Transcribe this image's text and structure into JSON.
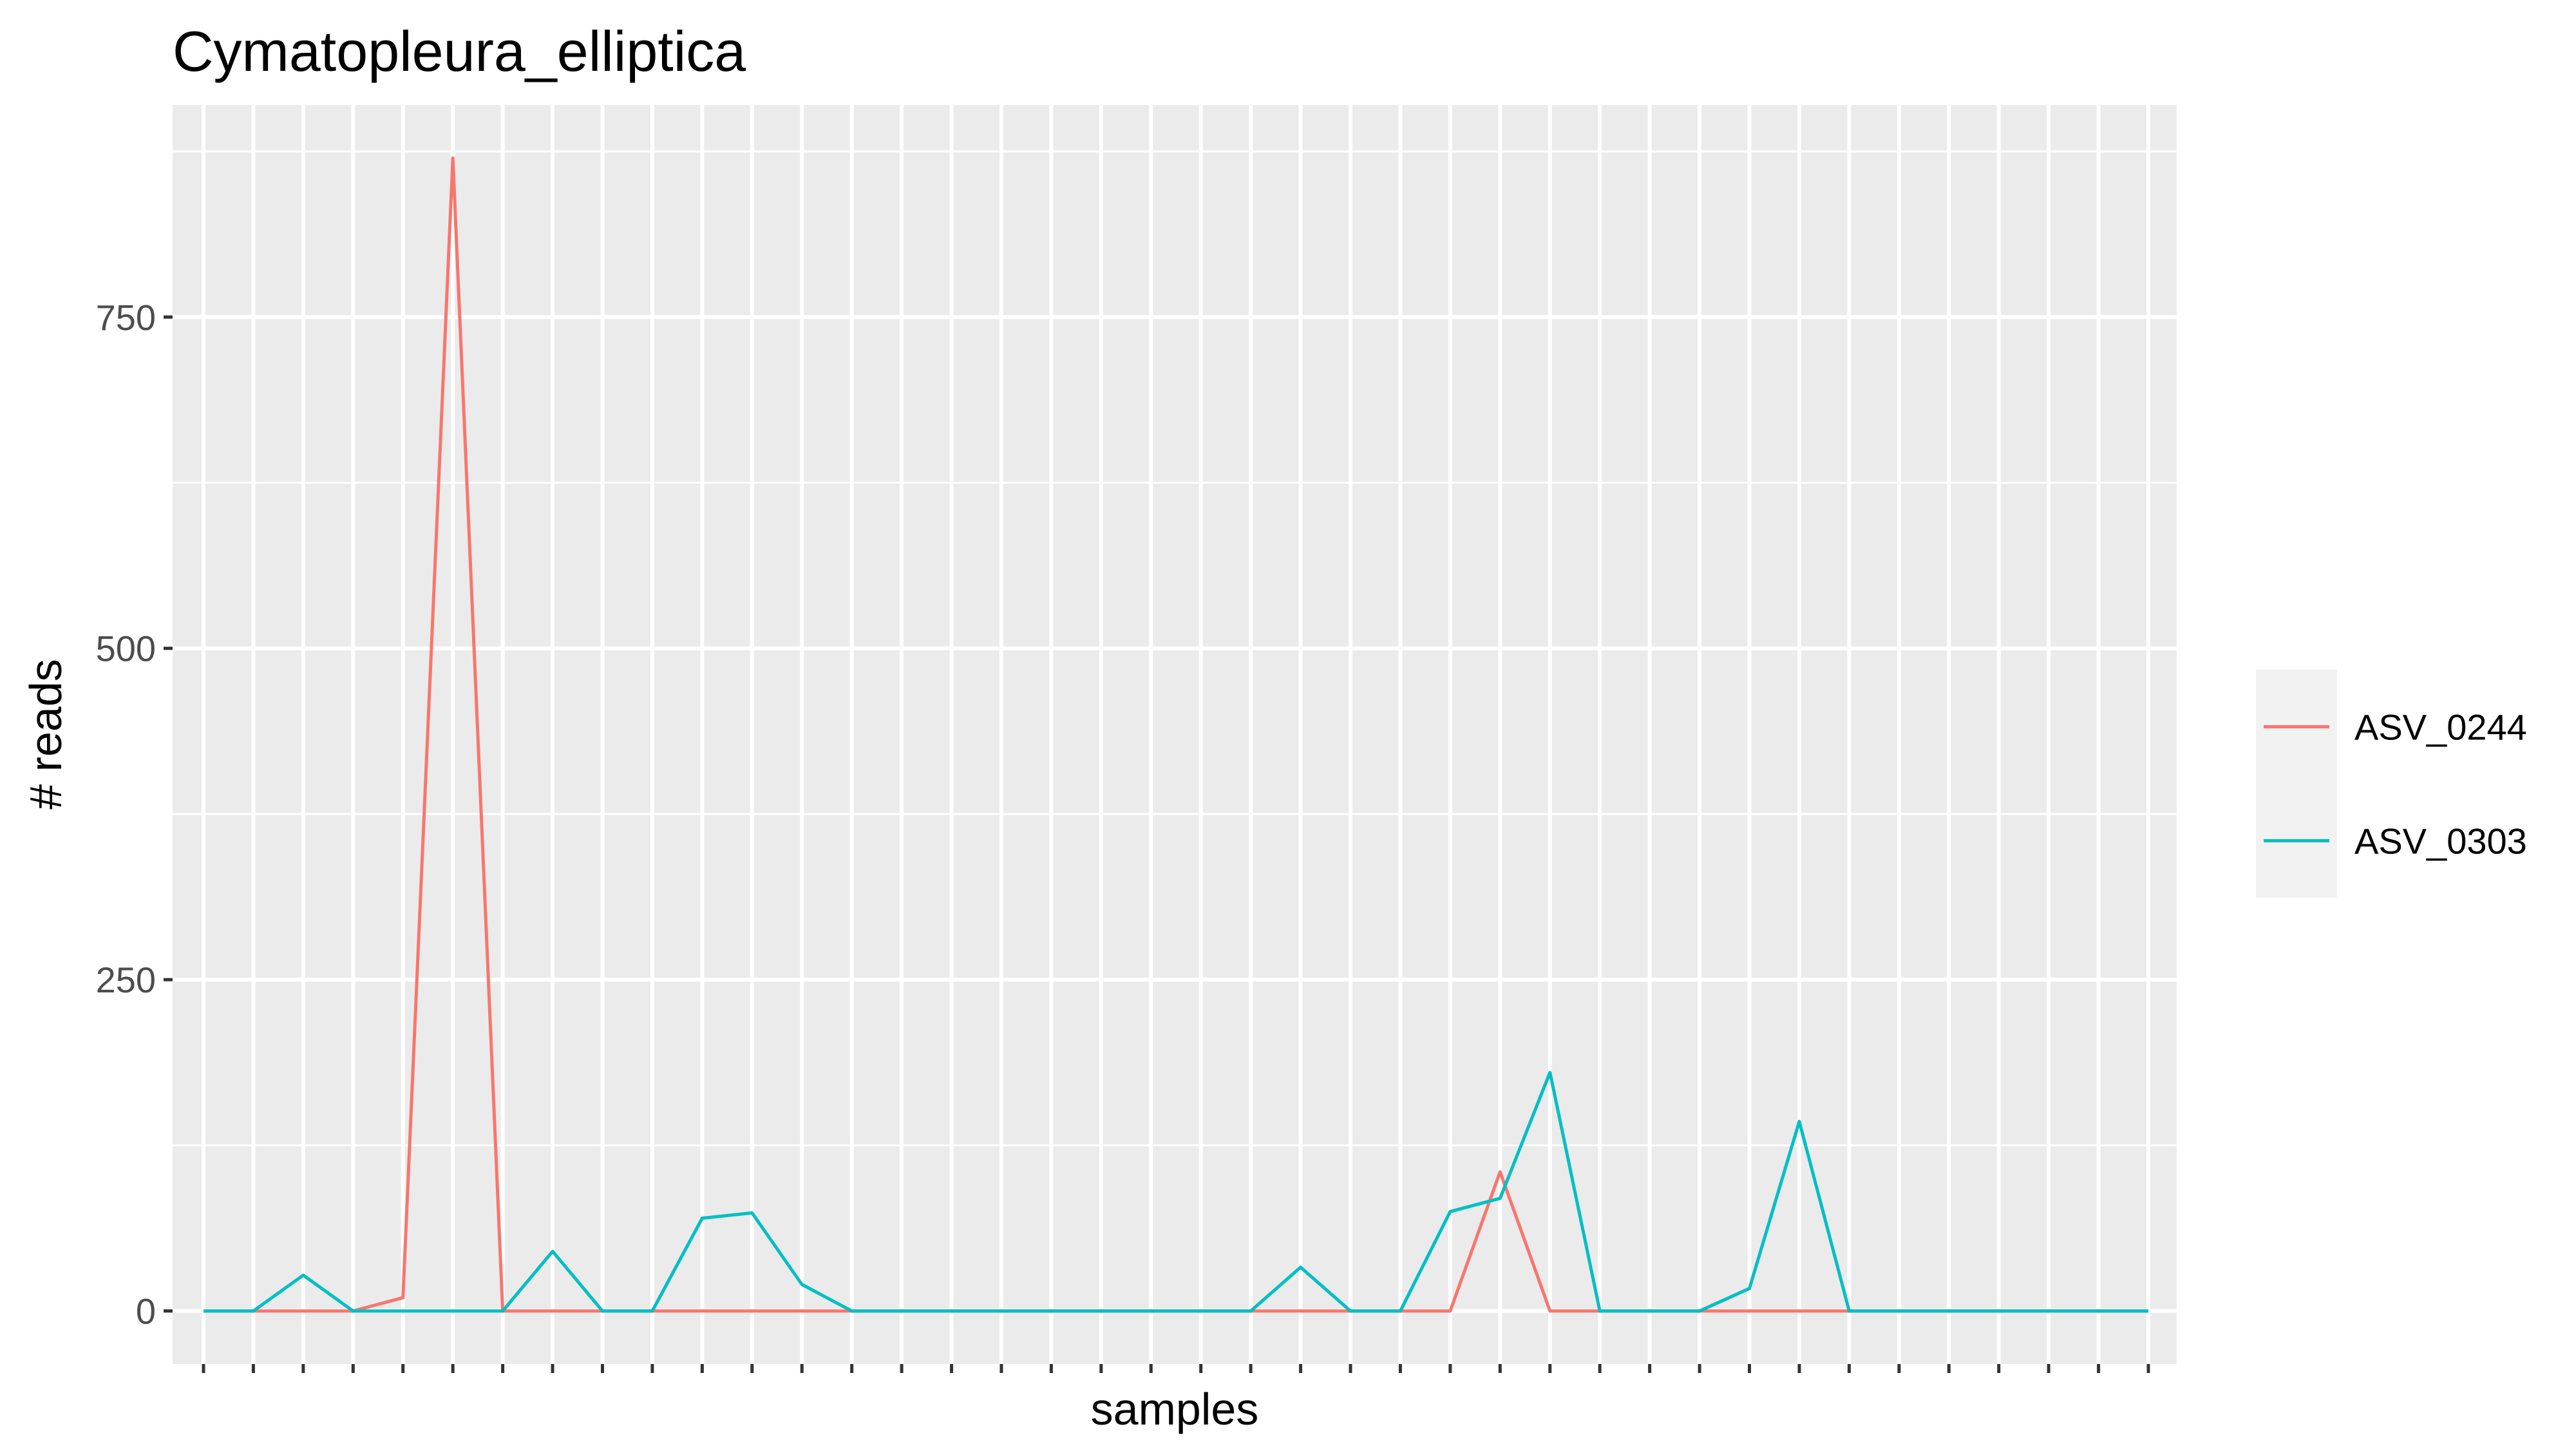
{
  "chart_data": {
    "type": "line",
    "title": "Cymatopleura_elliptica",
    "xlabel": "samples",
    "ylabel": "# reads",
    "ylim": [
      -40,
      910
    ],
    "y_ticks": [
      0,
      250,
      500,
      750
    ],
    "x_count": 40,
    "grid": true,
    "legend_position": "right",
    "series": [
      {
        "name": "ASV_0244",
        "color": "#F8766D",
        "values": [
          0,
          0,
          0,
          0,
          10,
          870,
          0,
          0,
          0,
          0,
          0,
          0,
          0,
          0,
          0,
          0,
          0,
          0,
          0,
          0,
          0,
          0,
          0,
          0,
          0,
          0,
          105,
          0,
          0,
          0,
          0,
          0,
          0,
          0,
          0,
          0,
          0,
          0,
          0,
          0
        ]
      },
      {
        "name": "ASV_0303",
        "color": "#00BFC4",
        "values": [
          0,
          0,
          27,
          0,
          0,
          0,
          0,
          45,
          0,
          0,
          70,
          74,
          20,
          0,
          0,
          0,
          0,
          0,
          0,
          0,
          0,
          0,
          33,
          0,
          0,
          75,
          85,
          180,
          0,
          0,
          0,
          17,
          143,
          0,
          0,
          0,
          0,
          0,
          0,
          0
        ]
      }
    ]
  },
  "colors": {
    "panel_background": "#EBEBEB",
    "grid_major": "#FFFFFF",
    "legend_background": "#F2F2F2"
  }
}
